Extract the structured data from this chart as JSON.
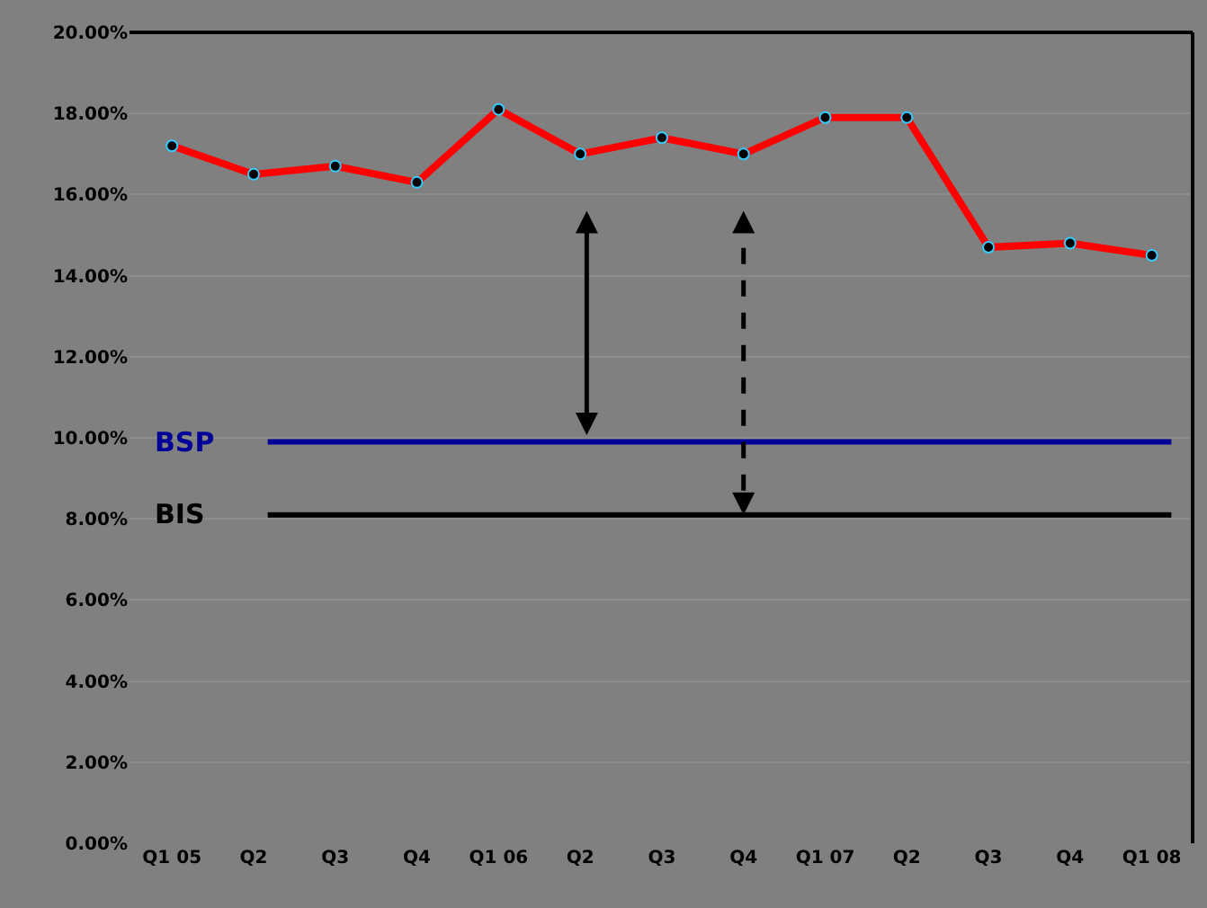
{
  "chart_data": {
    "type": "line",
    "categories": [
      "Q1 05",
      "Q2",
      "Q3",
      "Q4",
      "Q1 06",
      "Q2",
      "Q3",
      "Q4",
      "Q1 07",
      "Q2",
      "Q3",
      "Q4",
      "Q1 08"
    ],
    "series": [
      {
        "color": "#ff0000",
        "values": [
          17.2,
          16.5,
          16.7,
          16.3,
          18.1,
          17.0,
          17.4,
          17.0,
          17.9,
          17.9,
          14.7,
          14.8,
          14.5
        ]
      }
    ],
    "ylim": [
      0,
      20
    ],
    "yticks": [
      {
        "value": 0,
        "label": "0.00%"
      },
      {
        "value": 2,
        "label": "2.00%"
      },
      {
        "value": 4,
        "label": "4.00%"
      },
      {
        "value": 6,
        "label": "6.00%"
      },
      {
        "value": 8,
        "label": "8.00%"
      },
      {
        "value": 10,
        "label": "10.00%"
      },
      {
        "value": 12,
        "label": "12.00%"
      },
      {
        "value": 14,
        "label": "14.00%"
      },
      {
        "value": 16,
        "label": "16.00%"
      },
      {
        "value": 18,
        "label": "18.00%"
      },
      {
        "value": 20,
        "label": "20.00%"
      }
    ],
    "ref_lines": [
      {
        "axis": "y",
        "value": 9.9,
        "label": "BSP",
        "color": "#000099"
      },
      {
        "axis": "y",
        "value": 8.1,
        "label": "BIS",
        "color": "#000000"
      }
    ],
    "grid": "y",
    "marker": "circle",
    "line_style": "solid"
  }
}
